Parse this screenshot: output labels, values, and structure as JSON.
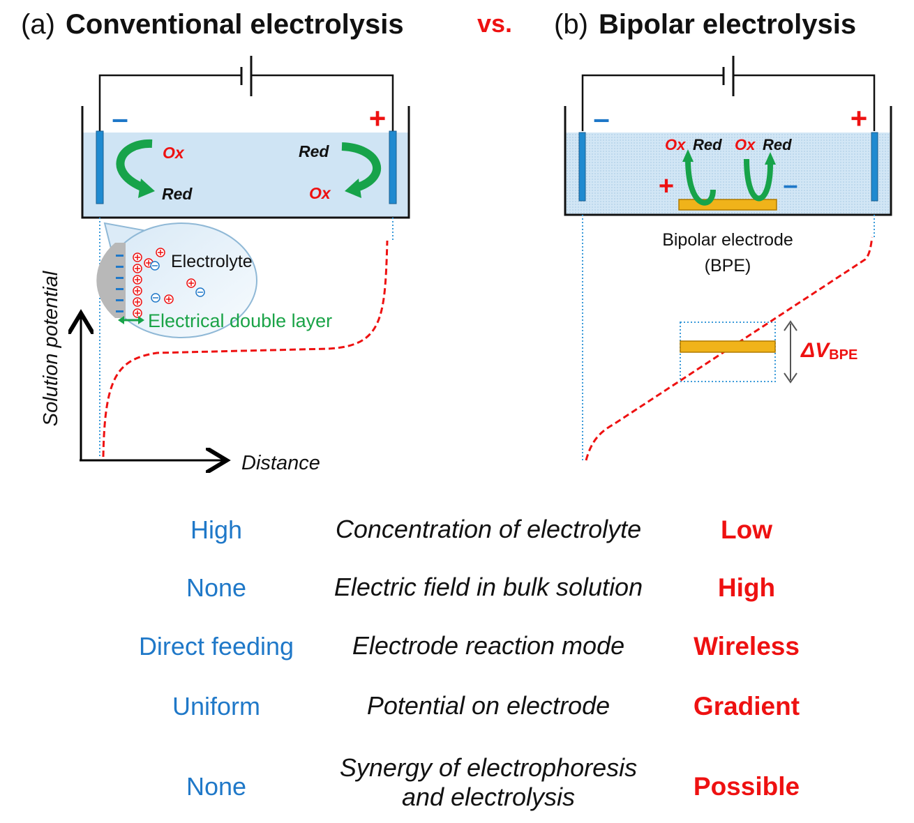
{
  "title": {
    "a_prefix": "(a)",
    "a_main": "Conventional electrolysis",
    "vs": "vs.",
    "b_prefix": "(b)",
    "b_main": "Bipolar electrolysis"
  },
  "panel_a": {
    "minus": "–",
    "plus": "+",
    "ox_left": "Ox",
    "red_left": "Red",
    "red_right": "Red",
    "ox_right": "Ox",
    "electrolyte": "Electrolyte",
    "double_layer": "Electrical double layer",
    "y_axis": "Solution potential",
    "x_axis": "Distance"
  },
  "panel_b": {
    "minus": "–",
    "plus": "+",
    "ox1": "Ox",
    "red1": "Red",
    "ox2": "Ox",
    "red2": "Red",
    "bpe_plus": "+",
    "bpe_minus": "–",
    "bpe_label_1": "Bipolar electrode",
    "bpe_label_2": "(BPE)",
    "delta_v": "ΔV",
    "delta_v_sub": "BPE"
  },
  "comparison": [
    {
      "left": "High",
      "middle": [
        "Concentration of electrolyte"
      ],
      "right": "Low"
    },
    {
      "left": "None",
      "middle": [
        "Electric field in bulk solution"
      ],
      "right": "High"
    },
    {
      "left": "Direct feeding",
      "middle": [
        "Electrode reaction mode"
      ],
      "right": "Wireless"
    },
    {
      "left": "Uniform",
      "middle": [
        "Potential on electrode"
      ],
      "right": "Gradient"
    },
    {
      "left": "None",
      "middle": [
        "Synergy of electrophoresis",
        "and electrolysis"
      ],
      "right": "Possible"
    }
  ],
  "colors": {
    "blue": "#1f78c8",
    "red": "#ee1111",
    "green": "#1aa347",
    "solution": "#cfe4f4",
    "bpe": "#f0b31a"
  }
}
